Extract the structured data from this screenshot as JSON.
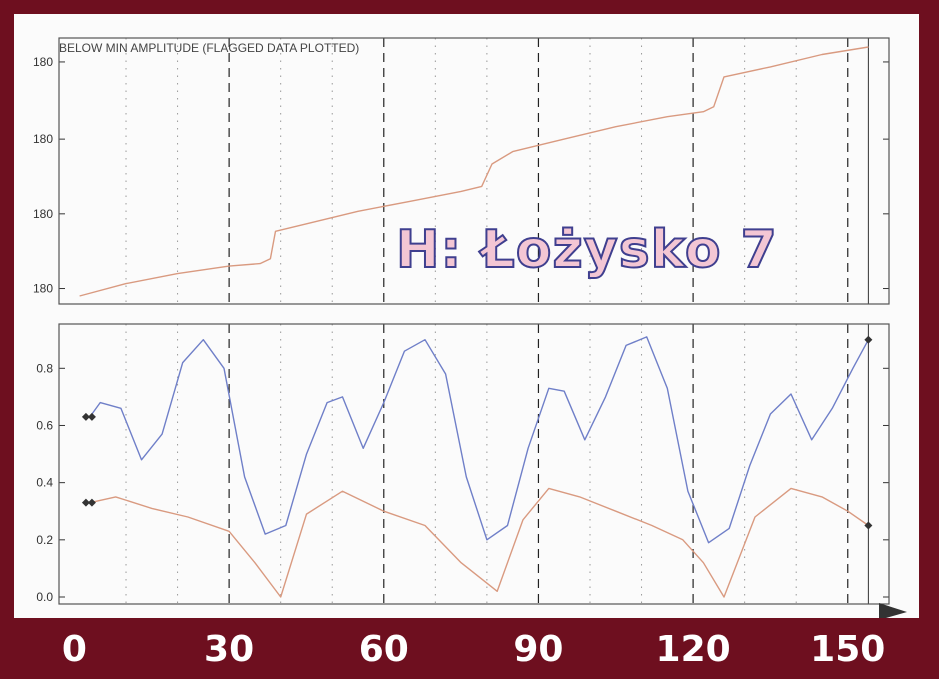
{
  "overlay_label": "H: Łożysko 7",
  "chart_data": [
    {
      "type": "line",
      "annotation": "BELOW MIN AMPLITUDE (FLAGGED DATA PLOTTED)",
      "xlim": [
        -3,
        158
      ],
      "ylim": [
        0,
        1
      ],
      "yticks": [
        {
          "value": 0.03,
          "label": "180"
        },
        {
          "value": 0.33,
          "label": "180"
        },
        {
          "value": 0.63,
          "label": "180"
        },
        {
          "value": 0.94,
          "label": "180"
        }
      ],
      "grid": true,
      "series": [
        {
          "color": "#d99a80",
          "x": [
            1,
            10,
            20,
            30,
            36,
            38,
            39,
            45,
            55,
            65,
            75,
            79,
            81,
            85,
            95,
            105,
            115,
            122,
            124,
            126,
            135,
            145,
            154
          ],
          "y": [
            0.0,
            0.05,
            0.09,
            0.12,
            0.13,
            0.15,
            0.26,
            0.29,
            0.34,
            0.38,
            0.42,
            0.44,
            0.53,
            0.58,
            0.63,
            0.68,
            0.72,
            0.74,
            0.76,
            0.88,
            0.92,
            0.97,
            1.0
          ]
        }
      ]
    },
    {
      "type": "line",
      "xlim": [
        -3,
        158
      ],
      "ylim": [
        0,
        0.92
      ],
      "yticks": [
        0.0,
        0.2,
        0.4,
        0.6,
        0.8
      ],
      "xticks": [
        0,
        30,
        60,
        90,
        120,
        150
      ],
      "grid": true,
      "series": [
        {
          "color": "#6f7fc8",
          "x": [
            3,
            5,
            9,
            13,
            17,
            21,
            25,
            29,
            33,
            37,
            41,
            45,
            49,
            52,
            56,
            60,
            64,
            68,
            72,
            76,
            80,
            84,
            88,
            92,
            95,
            99,
            103,
            107,
            111,
            115,
            119,
            123,
            127,
            131,
            135,
            139,
            143,
            147,
            151,
            154
          ],
          "y": [
            0.63,
            0.68,
            0.66,
            0.48,
            0.57,
            0.82,
            0.9,
            0.8,
            0.42,
            0.22,
            0.25,
            0.5,
            0.68,
            0.7,
            0.52,
            0.68,
            0.86,
            0.9,
            0.78,
            0.42,
            0.2,
            0.25,
            0.52,
            0.73,
            0.72,
            0.55,
            0.7,
            0.88,
            0.91,
            0.73,
            0.37,
            0.19,
            0.24,
            0.46,
            0.64,
            0.71,
            0.55,
            0.66,
            0.8,
            0.9
          ]
        },
        {
          "color": "#d99a80",
          "x": [
            3,
            8,
            15,
            22,
            30,
            35,
            40,
            45,
            52,
            60,
            68,
            75,
            82,
            87,
            92,
            98,
            105,
            112,
            118,
            122,
            126,
            132,
            139,
            145,
            150,
            154
          ],
          "y": [
            0.33,
            0.35,
            0.31,
            0.28,
            0.23,
            0.12,
            0.0,
            0.29,
            0.37,
            0.3,
            0.25,
            0.12,
            0.02,
            0.27,
            0.38,
            0.35,
            0.3,
            0.25,
            0.2,
            0.12,
            0.0,
            0.28,
            0.38,
            0.35,
            0.3,
            0.25
          ]
        }
      ]
    }
  ]
}
